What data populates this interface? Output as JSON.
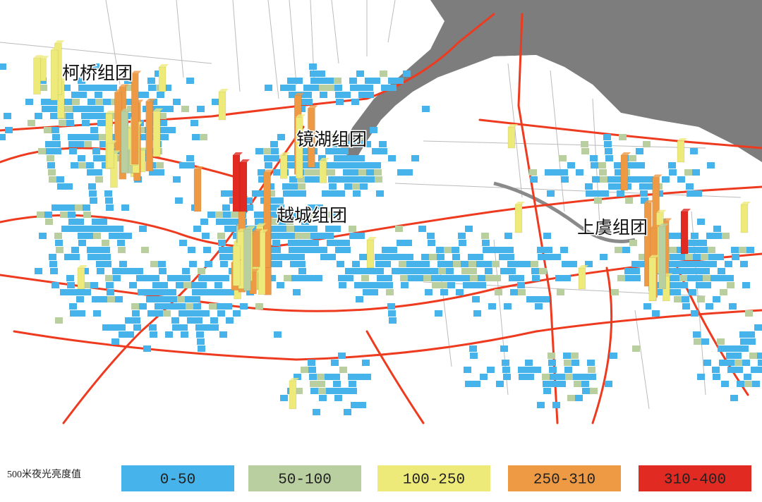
{
  "map": {
    "labels": [
      "柯桥组团",
      "镜湖组团",
      "越城组团",
      "上虞组团"
    ]
  },
  "legend": {
    "title": "500米夜光亮度值",
    "items": [
      {
        "label": "0-50",
        "color": "#46b4ea"
      },
      {
        "label": "50-100",
        "color": "#b9cfa0"
      },
      {
        "label": "100-250",
        "color": "#eeea7a"
      },
      {
        "label": "250-310",
        "color": "#ee9a45"
      },
      {
        "label": "310-400",
        "color": "#e02a22"
      }
    ]
  }
}
